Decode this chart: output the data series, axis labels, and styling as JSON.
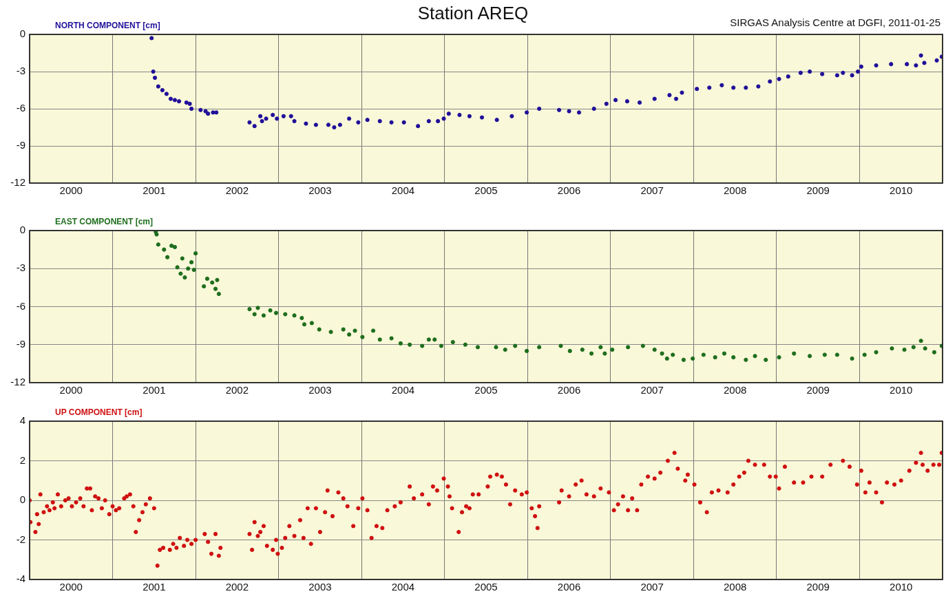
{
  "chart_data": [
    {
      "type": "scatter",
      "title": "Station AREQ",
      "annotations": [
        "SIRGAS Analysis Centre at DGFI, 2011-01-25"
      ],
      "ylabel": "NORTH COMPONENT [cm]",
      "color": "#20109a",
      "marker": "circle",
      "grid": true,
      "xlim": [
        2000,
        2011
      ],
      "ylim": [
        -12,
        0
      ],
      "yticks": [
        -12,
        -9,
        -6,
        -3,
        0
      ],
      "xticks": [
        {
          "value": 2000.5,
          "label": "2000"
        },
        {
          "value": 2001,
          "label": null
        },
        {
          "value": 2001.5,
          "label": "2001"
        },
        {
          "value": 2002,
          "label": null
        },
        {
          "value": 2002.5,
          "label": "2002"
        },
        {
          "value": 2003,
          "label": null
        },
        {
          "value": 2003.5,
          "label": "2003"
        },
        {
          "value": 2004,
          "label": null
        },
        {
          "value": 2004.5,
          "label": "2004"
        },
        {
          "value": 2005,
          "label": null
        },
        {
          "value": 2005.5,
          "label": "2005"
        },
        {
          "value": 2006,
          "label": null
        },
        {
          "value": 2006.5,
          "label": "2006"
        },
        {
          "value": 2007,
          "label": null
        },
        {
          "value": 2007.5,
          "label": "2007"
        },
        {
          "value": 2008,
          "label": null
        },
        {
          "value": 2008.5,
          "label": "2008"
        },
        {
          "value": 2009,
          "label": null
        },
        {
          "value": 2009.5,
          "label": "2009"
        },
        {
          "value": 2010,
          "label": null
        },
        {
          "value": 2010.5,
          "label": "2010"
        }
      ],
      "x": [
        2001.47,
        2001.49,
        2001.51,
        2001.55,
        2001.6,
        2001.65,
        2001.7,
        2001.75,
        2001.8,
        2001.89,
        2001.93,
        2001.95,
        2002.06,
        2002.12,
        2002.15,
        2002.21,
        2002.25,
        2002.65,
        2002.71,
        2002.78,
        2002.8,
        2002.85,
        2002.93,
        2002.98,
        2003.06,
        2003.15,
        2003.19,
        2003.33,
        2003.45,
        2003.6,
        2003.67,
        2003.74,
        2003.85,
        2003.96,
        2004.07,
        2004.22,
        2004.36,
        2004.51,
        2004.68,
        2004.81,
        2004.92,
        2004.99,
        2005.05,
        2005.18,
        2005.3,
        2005.45,
        2005.63,
        2005.81,
        2005.99,
        2006.14,
        2006.38,
        2006.5,
        2006.62,
        2006.8,
        2006.95,
        2007.06,
        2007.2,
        2007.35,
        2007.53,
        2007.71,
        2007.79,
        2007.86,
        2008.04,
        2008.19,
        2008.34,
        2008.48,
        2008.63,
        2008.78,
        2008.92,
        2009.03,
        2009.14,
        2009.29,
        2009.4,
        2009.55,
        2009.73,
        2009.8,
        2009.91,
        2009.98,
        2010.02,
        2010.2,
        2010.38,
        2010.57,
        2010.68,
        2010.74,
        2010.78,
        2010.93,
        2010.99
      ],
      "values": [
        -0.3,
        -3.0,
        -3.5,
        -4.2,
        -4.5,
        -4.8,
        -5.2,
        -5.3,
        -5.4,
        -5.5,
        -5.6,
        -6.0,
        -6.1,
        -6.2,
        -6.4,
        -6.3,
        -6.3,
        -7.1,
        -7.4,
        -6.6,
        -7.0,
        -6.8,
        -6.5,
        -6.8,
        -6.6,
        -6.6,
        -7.0,
        -7.2,
        -7.3,
        -7.3,
        -7.5,
        -7.3,
        -6.8,
        -7.1,
        -6.9,
        -7.0,
        -7.1,
        -7.1,
        -7.4,
        -7.0,
        -7.0,
        -6.8,
        -6.4,
        -6.5,
        -6.6,
        -6.7,
        -6.9,
        -6.6,
        -6.3,
        -6.0,
        -6.1,
        -6.2,
        -6.3,
        -6.0,
        -5.6,
        -5.3,
        -5.4,
        -5.5,
        -5.2,
        -4.9,
        -5.2,
        -4.7,
        -4.4,
        -4.3,
        -4.1,
        -4.3,
        -4.3,
        -4.2,
        -3.8,
        -3.6,
        -3.4,
        -3.1,
        -3.0,
        -3.2,
        -3.3,
        -3.1,
        -3.3,
        -3.0,
        -2.6,
        -2.5,
        -2.4,
        -2.4,
        -2.5,
        -1.7,
        -2.3,
        -2.1,
        -1.8
      ]
    },
    {
      "type": "scatter",
      "ylabel": "EAST COMPONENT [cm]",
      "color": "#1e6e1e",
      "marker": "circle",
      "grid": true,
      "xlim": [
        2000,
        2011
      ],
      "ylim": [
        -12,
        0
      ],
      "yticks": [
        -12,
        -9,
        -6,
        -3,
        0
      ],
      "xticks": [
        {
          "value": 2000.5,
          "label": "2000"
        },
        {
          "value": 2001,
          "label": null
        },
        {
          "value": 2001.5,
          "label": "2001"
        },
        {
          "value": 2002,
          "label": null
        },
        {
          "value": 2002.5,
          "label": "2002"
        },
        {
          "value": 2003,
          "label": null
        },
        {
          "value": 2003.5,
          "label": "2003"
        },
        {
          "value": 2004,
          "label": null
        },
        {
          "value": 2004.5,
          "label": "2004"
        },
        {
          "value": 2005,
          "label": null
        },
        {
          "value": 2005.5,
          "label": "2005"
        },
        {
          "value": 2006,
          "label": null
        },
        {
          "value": 2006.5,
          "label": "2006"
        },
        {
          "value": 2007,
          "label": null
        },
        {
          "value": 2007.5,
          "label": "2007"
        },
        {
          "value": 2008,
          "label": null
        },
        {
          "value": 2008.5,
          "label": "2008"
        },
        {
          "value": 2009,
          "label": null
        },
        {
          "value": 2009.5,
          "label": "2009"
        },
        {
          "value": 2010,
          "label": null
        },
        {
          "value": 2010.5,
          "label": "2010"
        }
      ],
      "x": [
        2001.52,
        2001.53,
        2001.55,
        2001.62,
        2001.66,
        2001.71,
        2001.75,
        2001.78,
        2001.82,
        2001.84,
        2001.87,
        2001.91,
        2001.95,
        2001.98,
        2002.0,
        2002.1,
        2002.14,
        2002.2,
        2002.24,
        2002.26,
        2002.28,
        2002.65,
        2002.71,
        2002.75,
        2002.82,
        2002.9,
        2002.97,
        2003.08,
        2003.19,
        2003.28,
        2003.31,
        2003.4,
        2003.49,
        2003.63,
        2003.78,
        2003.85,
        2003.92,
        2004.01,
        2004.14,
        2004.22,
        2004.36,
        2004.47,
        2004.58,
        2004.73,
        2004.81,
        2004.88,
        2004.96,
        2005.1,
        2005.25,
        2005.4,
        2005.62,
        2005.73,
        2005.85,
        2005.99,
        2006.14,
        2006.4,
        2006.51,
        2006.66,
        2006.77,
        2006.88,
        2006.93,
        2007.02,
        2007.21,
        2007.39,
        2007.53,
        2007.62,
        2007.68,
        2007.75,
        2007.88,
        2007.99,
        2008.12,
        2008.26,
        2008.37,
        2008.48,
        2008.63,
        2008.74,
        2008.87,
        2009.03,
        2009.21,
        2009.4,
        2009.58,
        2009.73,
        2009.91,
        2010.06,
        2010.2,
        2010.39,
        2010.54,
        2010.65,
        2010.74,
        2010.79,
        2010.9,
        2010.99
      ],
      "values": [
        -0.1,
        -0.3,
        -1.1,
        -1.5,
        -2.1,
        -1.2,
        -1.3,
        -2.9,
        -3.4,
        -2.2,
        -3.7,
        -3.0,
        -2.5,
        -3.1,
        -1.8,
        -4.4,
        -3.8,
        -4.1,
        -4.6,
        -3.9,
        -5.0,
        -6.2,
        -6.6,
        -6.1,
        -6.7,
        -6.3,
        -6.5,
        -6.6,
        -6.7,
        -6.9,
        -7.4,
        -7.3,
        -7.8,
        -8.0,
        -7.8,
        -8.2,
        -7.9,
        -8.4,
        -7.9,
        -8.6,
        -8.5,
        -8.9,
        -9.0,
        -9.1,
        -8.6,
        -8.6,
        -9.1,
        -8.8,
        -9.0,
        -9.2,
        -9.2,
        -9.4,
        -9.1,
        -9.5,
        -9.2,
        -9.1,
        -9.5,
        -9.4,
        -9.7,
        -9.2,
        -9.7,
        -9.4,
        -9.2,
        -9.1,
        -9.4,
        -9.7,
        -10.1,
        -9.8,
        -10.2,
        -10.1,
        -9.8,
        -10.0,
        -9.7,
        -10.0,
        -10.2,
        -9.9,
        -10.2,
        -10.0,
        -9.7,
        -9.9,
        -9.8,
        -9.8,
        -10.1,
        -9.8,
        -9.6,
        -9.3,
        -9.4,
        -9.2,
        -8.7,
        -9.3,
        -9.6,
        -9.1
      ]
    },
    {
      "type": "scatter",
      "ylabel": "UP COMPONENT [cm]",
      "color": "#d01010",
      "marker": "circle",
      "grid": true,
      "xlim": [
        2000,
        2011
      ],
      "ylim": [
        -4,
        4
      ],
      "yticks": [
        -4,
        -2,
        0,
        2,
        4
      ],
      "xticks": [
        {
          "value": 2000.5,
          "label": "2000"
        },
        {
          "value": 2001,
          "label": null
        },
        {
          "value": 2001.5,
          "label": "2001"
        },
        {
          "value": 2002,
          "label": null
        },
        {
          "value": 2002.5,
          "label": "2002"
        },
        {
          "value": 2003,
          "label": null
        },
        {
          "value": 2003.5,
          "label": "2003"
        },
        {
          "value": 2004,
          "label": null
        },
        {
          "value": 2004.5,
          "label": "2004"
        },
        {
          "value": 2005,
          "label": null
        },
        {
          "value": 2005.5,
          "label": "2005"
        },
        {
          "value": 2006,
          "label": null
        },
        {
          "value": 2006.5,
          "label": "2006"
        },
        {
          "value": 2007,
          "label": null
        },
        {
          "value": 2007.5,
          "label": "2007"
        },
        {
          "value": 2008,
          "label": null
        },
        {
          "value": 2008.5,
          "label": "2008"
        },
        {
          "value": 2009,
          "label": null
        },
        {
          "value": 2009.5,
          "label": "2009"
        },
        {
          "value": 2010,
          "label": null
        },
        {
          "value": 2010.5,
          "label": "2010"
        }
      ],
      "x": [
        2000.0,
        2000.01,
        2000.07,
        2000.09,
        2000.11,
        2000.13,
        2000.17,
        2000.21,
        2000.24,
        2000.28,
        2000.3,
        2000.34,
        2000.38,
        2000.43,
        2000.47,
        2000.51,
        2000.56,
        2000.61,
        2000.65,
        2000.69,
        2000.73,
        2000.75,
        2000.79,
        2000.83,
        2000.87,
        2000.91,
        2000.96,
        2001.0,
        2001.04,
        2001.08,
        2001.14,
        2001.17,
        2001.21,
        2001.25,
        2001.28,
        2001.32,
        2001.36,
        2001.4,
        2001.45,
        2001.5,
        2001.54,
        2001.57,
        2001.61,
        2001.69,
        2001.73,
        2001.77,
        2001.81,
        2001.86,
        2001.9,
        2001.95,
        2002.0,
        2002.11,
        2002.15,
        2002.19,
        2002.24,
        2002.28,
        2002.3,
        2002.65,
        2002.68,
        2002.71,
        2002.75,
        2002.78,
        2002.82,
        2002.86,
        2002.93,
        2002.97,
        2002.99,
        2003.04,
        2003.08,
        2003.13,
        2003.19,
        2003.26,
        2003.3,
        2003.35,
        2003.39,
        2003.45,
        2003.5,
        2003.56,
        2003.59,
        2003.65,
        2003.72,
        2003.78,
        2003.83,
        2003.9,
        2003.96,
        2004.01,
        2004.07,
        2004.12,
        2004.18,
        2004.25,
        2004.31,
        2004.4,
        2004.47,
        2004.58,
        2004.63,
        2004.73,
        2004.81,
        2004.86,
        2004.91,
        2004.99,
        2005.04,
        2005.06,
        2005.09,
        2005.17,
        2005.21,
        2005.26,
        2005.3,
        2005.34,
        2005.41,
        2005.52,
        2005.55,
        2005.63,
        2005.69,
        2005.74,
        2005.79,
        2005.85,
        2005.93,
        2005.99,
        2006.05,
        2006.09,
        2006.12,
        2006.14,
        2006.38,
        2006.41,
        2006.5,
        2006.58,
        2006.65,
        2006.71,
        2006.8,
        2006.88,
        2006.98,
        2007.04,
        2007.09,
        2007.15,
        2007.21,
        2007.26,
        2007.32,
        2007.37,
        2007.45,
        2007.53,
        2007.6,
        2007.69,
        2007.77,
        2007.81,
        2007.9,
        2007.93,
        2008.01,
        2008.08,
        2008.16,
        2008.22,
        2008.3,
        2008.41,
        2008.48,
        2008.55,
        2008.61,
        2008.66,
        2008.74,
        2008.85,
        2008.92,
        2008.99,
        2009.03,
        2009.1,
        2009.21,
        2009.32,
        2009.42,
        2009.55,
        2009.65,
        2009.8,
        2009.88,
        2009.97,
        2010.02,
        2010.07,
        2010.12,
        2010.2,
        2010.27,
        2010.33,
        2010.42,
        2010.5,
        2010.6,
        2010.68,
        2010.74,
        2010.76,
        2010.82,
        2010.89,
        2010.96,
        2010.99
      ],
      "values": [
        0.0,
        -1.1,
        -1.6,
        -0.7,
        -1.2,
        0.3,
        -0.6,
        -0.3,
        -0.5,
        -0.1,
        -0.4,
        0.3,
        -0.3,
        0.0,
        0.1,
        -0.3,
        -0.1,
        0.1,
        -0.3,
        0.6,
        0.6,
        -0.5,
        0.2,
        0.1,
        -0.4,
        0.0,
        -0.7,
        -0.3,
        -0.5,
        -0.4,
        0.1,
        0.2,
        0.3,
        -0.3,
        -1.6,
        -1.0,
        -0.6,
        -0.2,
        0.1,
        -0.4,
        -3.3,
        -2.5,
        -2.4,
        -2.5,
        -2.2,
        -2.4,
        -1.9,
        -2.3,
        -2.0,
        -2.2,
        -2.0,
        -1.7,
        -2.1,
        -2.7,
        -1.7,
        -2.8,
        -2.4,
        -1.7,
        -2.5,
        -1.1,
        -1.8,
        -1.6,
        -1.3,
        -2.3,
        -2.5,
        -2.0,
        -2.7,
        -2.4,
        -1.9,
        -1.3,
        -1.8,
        -1.0,
        -1.9,
        -0.4,
        -2.2,
        -0.4,
        -1.6,
        -0.6,
        0.5,
        -0.8,
        0.4,
        0.1,
        -0.3,
        -1.3,
        -0.4,
        0.1,
        -0.5,
        -1.9,
        -1.3,
        -1.4,
        -0.5,
        -0.3,
        -0.1,
        0.7,
        0.1,
        0.3,
        -0.2,
        0.7,
        0.5,
        1.1,
        0.7,
        0.2,
        -0.4,
        -1.6,
        -0.6,
        -0.3,
        -0.4,
        0.3,
        0.3,
        0.7,
        1.2,
        1.3,
        1.2,
        0.8,
        -0.2,
        0.5,
        0.3,
        0.4,
        -0.4,
        -0.8,
        -1.4,
        -0.3,
        -0.1,
        0.5,
        0.2,
        0.8,
        1.0,
        0.3,
        0.2,
        0.6,
        0.4,
        -0.5,
        -0.2,
        0.2,
        -0.5,
        0.1,
        -0.5,
        0.8,
        1.2,
        1.1,
        1.4,
        2.0,
        2.4,
        1.6,
        1.0,
        1.3,
        0.8,
        -0.1,
        -0.6,
        0.4,
        0.5,
        0.4,
        0.8,
        1.2,
        1.4,
        2.0,
        1.8,
        1.8,
        1.2,
        1.2,
        0.6,
        1.7,
        0.9,
        0.9,
        1.2,
        1.2,
        1.8,
        2.0,
        1.7,
        0.8,
        1.5,
        0.4,
        0.9,
        0.4,
        -0.1,
        0.9,
        0.8,
        1.0,
        1.5,
        1.9,
        2.4,
        1.8,
        1.5,
        1.8,
        1.8,
        2.4
      ]
    }
  ]
}
